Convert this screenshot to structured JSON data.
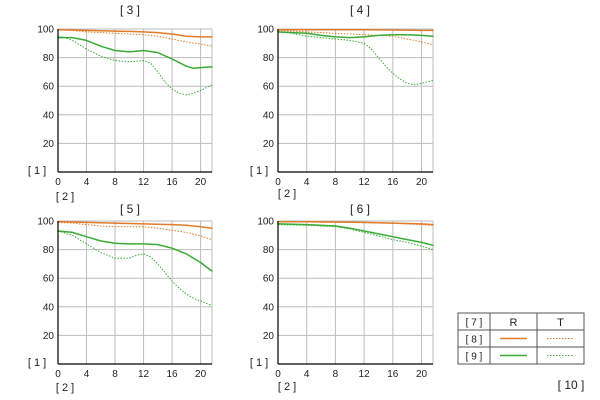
{
  "chart_data": [
    {
      "type": "line",
      "title": "[ 3 ]",
      "ylabel": "[ 1 ]",
      "xlabel": "[ 2 ]",
      "xlim": [
        0,
        21.6
      ],
      "ylim": [
        0,
        100
      ],
      "xticks": [
        0,
        4,
        8,
        12,
        16,
        20
      ],
      "yticks": [
        20,
        40,
        60,
        80,
        100
      ],
      "series": [
        {
          "name": "[ 8 ]",
          "direction": "R",
          "color": "#e07b28",
          "style": "solid",
          "x": [
            0,
            2,
            4,
            6,
            8,
            10,
            12,
            14,
            16,
            18,
            20,
            21.6
          ],
          "y": [
            99.5,
            99.3,
            99,
            98.8,
            98.5,
            98.3,
            98,
            97.5,
            96.5,
            95,
            94.5,
            94.5
          ]
        },
        {
          "name": "[ 8 ]",
          "direction": "T",
          "color": "#e07b28",
          "style": "dotted",
          "x": [
            0,
            2,
            4,
            6,
            8,
            10,
            12,
            14,
            16,
            18,
            20,
            21.6
          ],
          "y": [
            99.5,
            99,
            98,
            97.5,
            97,
            96.5,
            96,
            95,
            93,
            91,
            89.5,
            88
          ]
        },
        {
          "name": "[ 9 ]",
          "direction": "R",
          "color": "#3aaa35",
          "style": "solid",
          "x": [
            0,
            2,
            4,
            6,
            8,
            10,
            12,
            14,
            16,
            18,
            19,
            20,
            21.6
          ],
          "y": [
            94,
            94,
            92,
            88,
            85,
            84,
            85,
            83.5,
            79,
            74,
            72.5,
            73,
            73.5
          ]
        },
        {
          "name": "[ 9 ]",
          "direction": "T",
          "color": "#3aaa35",
          "style": "dotted",
          "x": [
            0,
            1,
            2,
            4,
            6,
            8,
            10,
            12,
            13,
            14,
            15,
            16,
            17,
            18,
            19,
            20,
            21.6
          ],
          "y": [
            95,
            94,
            92,
            86,
            81,
            78,
            77,
            78,
            76,
            70,
            63,
            58,
            55,
            54,
            55,
            57,
            61
          ]
        }
      ]
    },
    {
      "type": "line",
      "title": "[ 4 ]",
      "ylabel": "[ 1 ]",
      "xlabel": "[ 2 ]",
      "xlim": [
        0,
        21.6
      ],
      "ylim": [
        0,
        100
      ],
      "xticks": [
        0,
        4,
        8,
        12,
        16,
        20
      ],
      "yticks": [
        20,
        40,
        60,
        80,
        100
      ],
      "series": [
        {
          "name": "[ 8 ]",
          "direction": "R",
          "color": "#e07b28",
          "style": "solid",
          "x": [
            0,
            4,
            8,
            12,
            16,
            20,
            21.6
          ],
          "y": [
            99.5,
            99.5,
            99.5,
            99.5,
            99.3,
            99,
            99
          ]
        },
        {
          "name": "[ 8 ]",
          "direction": "T",
          "color": "#e07b28",
          "style": "dotted",
          "x": [
            0,
            4,
            8,
            12,
            14,
            16,
            18,
            20,
            21.6
          ],
          "y": [
            99,
            98,
            97,
            96,
            95.5,
            95,
            93,
            91,
            89
          ]
        },
        {
          "name": "[ 9 ]",
          "direction": "R",
          "color": "#3aaa35",
          "style": "solid",
          "x": [
            0,
            2,
            4,
            6,
            8,
            10,
            12,
            14,
            16,
            18,
            20,
            21.6
          ],
          "y": [
            98,
            97.5,
            97,
            95.5,
            94.5,
            94,
            94.5,
            95.5,
            96,
            96,
            95.5,
            95
          ]
        },
        {
          "name": "[ 9 ]",
          "direction": "T",
          "color": "#3aaa35",
          "style": "dotted",
          "x": [
            0,
            2,
            4,
            6,
            8,
            10,
            12,
            13,
            14,
            15,
            16,
            17,
            18,
            19,
            20,
            21.6
          ],
          "y": [
            98,
            97,
            95,
            94,
            93,
            92,
            90,
            86,
            80,
            74,
            69,
            65,
            62,
            61,
            62,
            64
          ]
        }
      ]
    },
    {
      "type": "line",
      "title": "[ 5 ]",
      "ylabel": "[ 1 ]",
      "xlabel": "[ 2 ]",
      "xlim": [
        0,
        21.6
      ],
      "ylim": [
        0,
        100
      ],
      "xticks": [
        0,
        4,
        8,
        12,
        16,
        20
      ],
      "yticks": [
        20,
        40,
        60,
        80,
        100
      ],
      "series": [
        {
          "name": "[ 8 ]",
          "direction": "R",
          "color": "#e07b28",
          "style": "solid",
          "x": [
            0,
            4,
            8,
            12,
            16,
            18,
            20,
            21.6
          ],
          "y": [
            99.5,
            99,
            98.5,
            98,
            97.5,
            97,
            96,
            95
          ]
        },
        {
          "name": "[ 8 ]",
          "direction": "T",
          "color": "#e07b28",
          "style": "dotted",
          "x": [
            0,
            2,
            4,
            6,
            8,
            10,
            12,
            14,
            16,
            18,
            20,
            21.6
          ],
          "y": [
            99,
            98.5,
            97.5,
            96.5,
            96,
            96,
            96,
            95,
            93.5,
            92,
            89.5,
            87
          ]
        },
        {
          "name": "[ 9 ]",
          "direction": "R",
          "color": "#3aaa35",
          "style": "solid",
          "x": [
            0,
            2,
            4,
            6,
            8,
            10,
            12,
            14,
            16,
            18,
            20,
            21.6
          ],
          "y": [
            93,
            92,
            89,
            86,
            84.5,
            84,
            84,
            83.5,
            81,
            77,
            71,
            65
          ]
        },
        {
          "name": "[ 9 ]",
          "direction": "T",
          "color": "#3aaa35",
          "style": "dotted",
          "x": [
            0,
            2,
            4,
            6,
            8,
            10,
            11,
            12,
            13,
            14,
            15,
            16,
            17,
            18,
            19,
            20,
            21.6
          ],
          "y": [
            93,
            90,
            84,
            78,
            74,
            74,
            76,
            77,
            75,
            70,
            64,
            58,
            53,
            49,
            46,
            44,
            41
          ]
        }
      ]
    },
    {
      "type": "line",
      "title": "[ 6 ]",
      "ylabel": "[ 1 ]",
      "xlabel": "[ 2 ]",
      "xlim": [
        0,
        21.6
      ],
      "ylim": [
        0,
        100
      ],
      "xticks": [
        0,
        4,
        8,
        12,
        16,
        20
      ],
      "yticks": [
        20,
        40,
        60,
        80,
        100
      ],
      "series": [
        {
          "name": "[ 8 ]",
          "direction": "R",
          "color": "#e07b28",
          "style": "solid",
          "x": [
            0,
            4,
            8,
            12,
            16,
            20,
            21.6
          ],
          "y": [
            99.5,
            99.5,
            99.3,
            99,
            98.5,
            98,
            97.5
          ]
        },
        {
          "name": "[ 8 ]",
          "direction": "T",
          "color": "#e07b28",
          "style": "dotted",
          "x": [
            0,
            4,
            8,
            12,
            16,
            20,
            21.6
          ],
          "y": [
            99.5,
            99.3,
            99,
            98.8,
            98.3,
            97.5,
            97
          ]
        },
        {
          "name": "[ 9 ]",
          "direction": "R",
          "color": "#3aaa35",
          "style": "solid",
          "x": [
            0,
            4,
            8,
            10,
            12,
            14,
            16,
            18,
            20,
            21.6
          ],
          "y": [
            98,
            97.5,
            96.5,
            95,
            93,
            91,
            89,
            87,
            85,
            83
          ]
        },
        {
          "name": "[ 9 ]",
          "direction": "T",
          "color": "#3aaa35",
          "style": "dotted",
          "x": [
            0,
            4,
            8,
            10,
            12,
            14,
            16,
            18,
            20,
            21.6
          ],
          "y": [
            97.5,
            97,
            96,
            94.5,
            92,
            89.5,
            87,
            85,
            82.5,
            80
          ]
        }
      ]
    }
  ],
  "legend": {
    "header_label": "[ 7 ]",
    "col_r": "R",
    "col_t": "T",
    "row1_label": "[ 8 ]",
    "row2_label": "[ 9 ]",
    "row1_color": "#e07b28",
    "row2_color": "#3aaa35"
  },
  "footer_label": "[ 10 ]",
  "colors": {
    "axis": "#000000",
    "grid": "#bdbdbd",
    "orange": "#e07b28",
    "green": "#3aaa35"
  }
}
